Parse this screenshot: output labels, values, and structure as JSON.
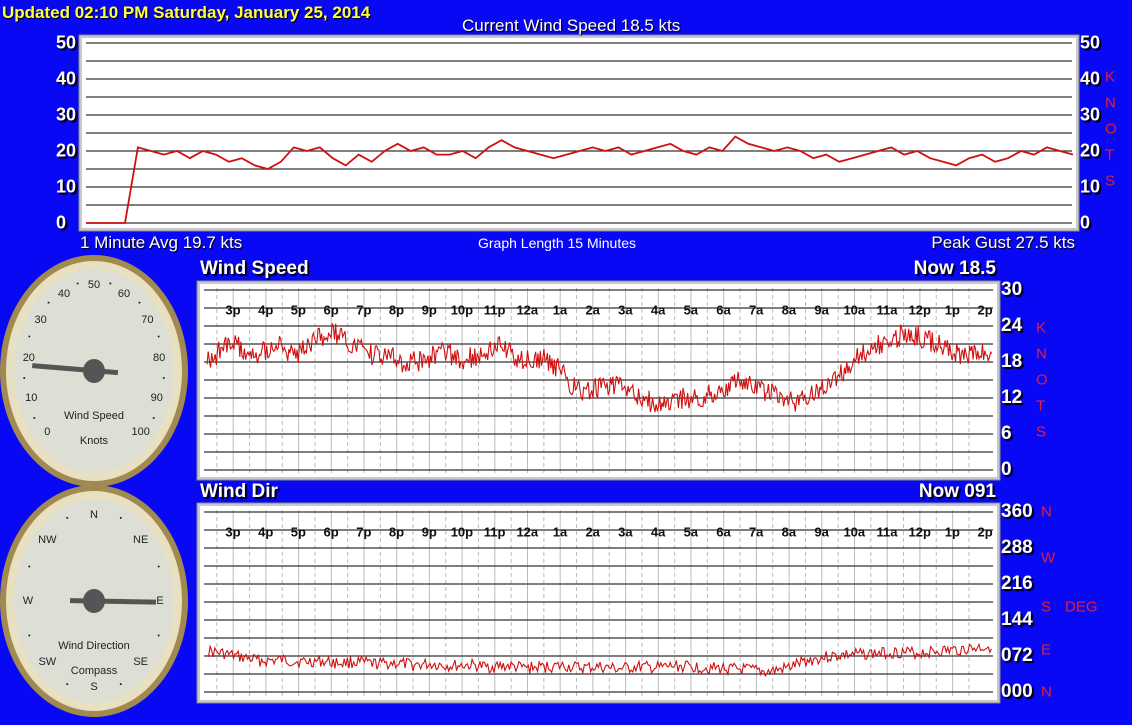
{
  "header": {
    "updated": "Updated  02:10 PM  Saturday, January 25, 2014",
    "current": "Current Wind Speed 18.5 kts"
  },
  "top_chart": {
    "avg": "1 Minute Avg 19.7 kts",
    "length": "Graph Length 15 Minutes",
    "peak": "Peak Gust 27.5 kts",
    "unit_letters": [
      "K",
      "N",
      "O",
      "T",
      "S"
    ]
  },
  "speed_panel": {
    "title": "Wind Speed",
    "now": "Now 18.5",
    "unit_letters": [
      "K",
      "N",
      "O",
      "T",
      "S"
    ]
  },
  "dir_panel": {
    "title": "Wind Dir",
    "now": "Now 091",
    "side_letters": [
      "N",
      "W",
      "S",
      "E",
      "N"
    ],
    "deg": "DEG"
  },
  "speed_gauge": {
    "label": "Wind Speed",
    "sub": "Knots",
    "value": 18.5,
    "ticks": [
      "0",
      "10",
      "20",
      "30",
      "40",
      "50",
      "60",
      "70",
      "80",
      "90",
      "100"
    ]
  },
  "dir_gauge": {
    "label": "Wind Direction",
    "sub": "Compass",
    "value": 91,
    "ticks": [
      "N",
      "NE",
      "E",
      "SE",
      "S",
      "SW",
      "W",
      "NW"
    ]
  },
  "colors": {
    "background": "#0808f4",
    "line": "#d01010",
    "title": "#ffff40",
    "units": "#e0203a"
  },
  "chart_data": [
    {
      "type": "line",
      "title": "Current Wind Speed 18.5 kts",
      "ylim": [
        0,
        50
      ],
      "yticks": [
        "0",
        "10",
        "20",
        "30",
        "40",
        "50"
      ],
      "grid": true,
      "values": [
        0,
        0,
        0,
        0,
        21,
        20,
        19,
        20,
        18,
        20,
        19,
        17,
        18,
        16,
        15,
        17,
        21,
        20,
        21,
        18,
        16,
        19,
        17,
        20,
        22,
        20,
        21,
        19,
        19,
        20,
        18,
        21,
        23,
        21,
        20,
        19,
        18,
        19,
        20,
        21,
        20,
        21,
        19,
        20,
        21,
        22,
        20,
        19,
        21,
        20,
        24,
        22,
        21,
        20,
        21,
        20,
        18,
        19,
        17,
        18,
        19,
        20,
        21,
        19,
        20,
        18,
        17,
        16,
        18,
        19,
        17,
        18,
        20,
        19,
        21,
        20,
        19
      ]
    },
    {
      "type": "line",
      "title": "Wind Speed",
      "ylim": [
        0,
        30
      ],
      "yticks": [
        "0",
        "6",
        "12",
        "18",
        "24",
        "30"
      ],
      "grid": true,
      "xticks": [
        "3p",
        "4p",
        "5p",
        "6p",
        "7p",
        "8p",
        "9p",
        "10p",
        "11p",
        "12a",
        "1a",
        "2a",
        "3a",
        "4a",
        "5a",
        "6a",
        "7a",
        "8a",
        "9a",
        "10a",
        "11a",
        "12p",
        "1p",
        "2p"
      ],
      "values": [
        18,
        20,
        21,
        19,
        20,
        21,
        19,
        20,
        22,
        23,
        21,
        20,
        19,
        19,
        18,
        18,
        19,
        20,
        18,
        19,
        20,
        21,
        19,
        18,
        19,
        17,
        14,
        13,
        14,
        14,
        13,
        12,
        11,
        11,
        12,
        12,
        13,
        14,
        15,
        14,
        13,
        12,
        11,
        13,
        14,
        16,
        18,
        20,
        21,
        22,
        23,
        22,
        21,
        20,
        19,
        20,
        19
      ]
    },
    {
      "type": "line",
      "title": "Wind Dir",
      "ylim": [
        0,
        360
      ],
      "yticks": [
        "000",
        "072",
        "144",
        "216",
        "288",
        "360"
      ],
      "grid": true,
      "xticks": [
        "3p",
        "4p",
        "5p",
        "6p",
        "7p",
        "8p",
        "9p",
        "10p",
        "11p",
        "12a",
        "1a",
        "2a",
        "3a",
        "4a",
        "5a",
        "6a",
        "7a",
        "8a",
        "9a",
        "10a",
        "11a",
        "12p",
        "1p",
        "2p"
      ],
      "values": [
        82,
        76,
        68,
        62,
        64,
        60,
        62,
        58,
        60,
        56,
        58,
        54,
        56,
        52,
        54,
        50,
        52,
        48,
        50,
        52,
        48,
        50,
        46,
        50,
        48,
        52,
        50,
        48,
        46,
        44,
        40,
        48,
        62,
        70,
        74,
        76,
        78,
        80,
        78,
        82,
        84,
        88,
        92
      ]
    }
  ]
}
